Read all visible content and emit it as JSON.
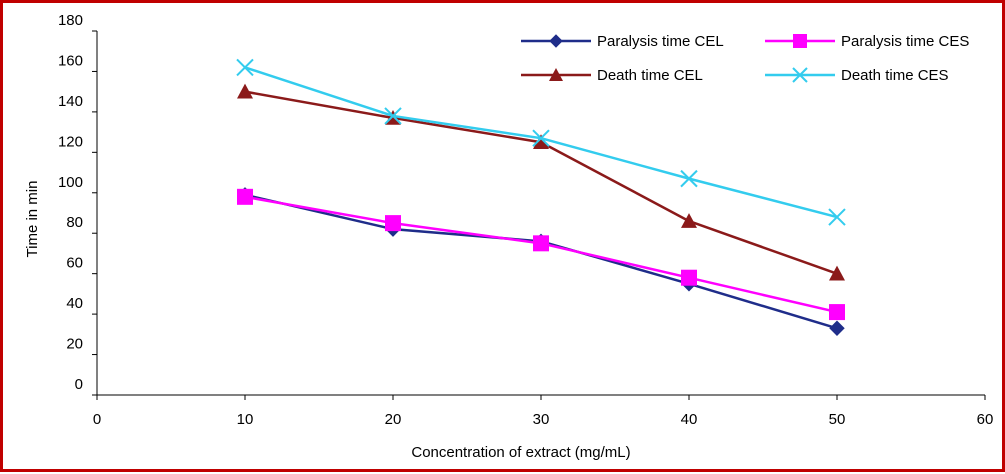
{
  "chart_data": {
    "type": "line",
    "title": "",
    "xlabel": "Concentration of extract (mg/mL)",
    "ylabel": "Time in min",
    "xlim": [
      0,
      60
    ],
    "ylim": [
      0,
      180
    ],
    "x_ticks": [
      0,
      10,
      20,
      30,
      40,
      50,
      60
    ],
    "y_ticks": [
      0,
      20,
      40,
      60,
      80,
      100,
      120,
      140,
      160,
      180
    ],
    "grid": false,
    "legend_position": "top-right",
    "x": [
      10,
      20,
      30,
      40,
      50
    ],
    "series": [
      {
        "name": "Paralysis time CEL",
        "values": [
          99,
          82,
          76,
          55,
          33
        ],
        "color": "#1f2d8a",
        "marker": "diamond"
      },
      {
        "name": "Paralysis time CES",
        "values": [
          98,
          85,
          75,
          58,
          41
        ],
        "color": "#ff00ff",
        "marker": "square"
      },
      {
        "name": "Death time CEL",
        "values": [
          150,
          137,
          125,
          86,
          60
        ],
        "color": "#8b1a1a",
        "marker": "triangle"
      },
      {
        "name": "Death time CES",
        "values": [
          162,
          138,
          127,
          107,
          88
        ],
        "color": "#33ccee",
        "marker": "x"
      }
    ],
    "frame_color": "#c00000"
  }
}
